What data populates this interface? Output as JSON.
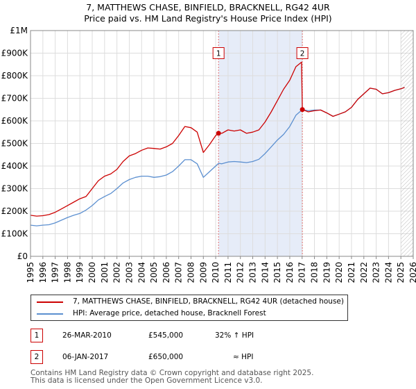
{
  "title": "7, MATTHEWS CHASE, BINFIELD, BRACKNELL, RG42 4UR",
  "subtitle": "Price paid vs. HM Land Registry's House Price Index (HPI)",
  "colors": {
    "property_line": "#cc0000",
    "hpi_line": "#5b8fd0",
    "shade": "#e6ecf8",
    "marker_vline": "#e07070",
    "grid": "#dddddd"
  },
  "chart_data": {
    "type": "line",
    "title": "7, MATTHEWS CHASE, BINFIELD, BRACKNELL, RG42 4UR",
    "subtitle": "Price paid vs. HM Land Registry's House Price Index (HPI)",
    "xlabel": "",
    "ylabel": "",
    "xlim": [
      1995,
      2026
    ],
    "ylim": [
      0,
      1000000
    ],
    "grid": true,
    "y_ticks": [
      {
        "value": 0,
        "label": "£0"
      },
      {
        "value": 100000,
        "label": "£100K"
      },
      {
        "value": 200000,
        "label": "£200K"
      },
      {
        "value": 300000,
        "label": "£300K"
      },
      {
        "value": 400000,
        "label": "£400K"
      },
      {
        "value": 500000,
        "label": "£500K"
      },
      {
        "value": 600000,
        "label": "£600K"
      },
      {
        "value": 700000,
        "label": "£700K"
      },
      {
        "value": 800000,
        "label": "£800K"
      },
      {
        "value": 900000,
        "label": "£900K"
      },
      {
        "value": 1000000,
        "label": "£1M"
      }
    ],
    "x_ticks": [
      "1995",
      "1996",
      "1997",
      "1998",
      "1999",
      "2000",
      "2001",
      "2002",
      "2003",
      "2004",
      "2005",
      "2006",
      "2007",
      "2008",
      "2009",
      "2010",
      "2011",
      "2012",
      "2013",
      "2014",
      "2015",
      "2016",
      "2017",
      "2018",
      "2019",
      "2020",
      "2021",
      "2022",
      "2023",
      "2024",
      "2025",
      "2026"
    ],
    "shaded_ranges": [
      [
        2010.23,
        2017.02
      ]
    ],
    "forecast_start": 2025.0,
    "series": [
      {
        "name": "7, MATTHEWS CHASE, BINFIELD, BRACKNELL, RG42 4UR (detached house)",
        "color": "#cc0000",
        "points": [
          [
            1995.0,
            182000
          ],
          [
            1995.5,
            178000
          ],
          [
            1996.0,
            180000
          ],
          [
            1996.5,
            185000
          ],
          [
            1997.0,
            195000
          ],
          [
            1997.5,
            210000
          ],
          [
            1998.0,
            225000
          ],
          [
            1998.5,
            240000
          ],
          [
            1999.0,
            255000
          ],
          [
            1999.5,
            265000
          ],
          [
            2000.0,
            300000
          ],
          [
            2000.5,
            335000
          ],
          [
            2001.0,
            355000
          ],
          [
            2001.5,
            365000
          ],
          [
            2002.0,
            385000
          ],
          [
            2002.5,
            420000
          ],
          [
            2003.0,
            445000
          ],
          [
            2003.5,
            455000
          ],
          [
            2004.0,
            470000
          ],
          [
            2004.5,
            480000
          ],
          [
            2005.0,
            478000
          ],
          [
            2005.5,
            475000
          ],
          [
            2006.0,
            485000
          ],
          [
            2006.5,
            500000
          ],
          [
            2007.0,
            535000
          ],
          [
            2007.5,
            575000
          ],
          [
            2008.0,
            570000
          ],
          [
            2008.5,
            550000
          ],
          [
            2009.0,
            460000
          ],
          [
            2009.5,
            495000
          ],
          [
            2010.0,
            535000
          ],
          [
            2010.23,
            545000
          ],
          [
            2010.5,
            545000
          ],
          [
            2011.0,
            560000
          ],
          [
            2011.5,
            555000
          ],
          [
            2012.0,
            560000
          ],
          [
            2012.5,
            545000
          ],
          [
            2013.0,
            550000
          ],
          [
            2013.5,
            560000
          ],
          [
            2014.0,
            595000
          ],
          [
            2014.5,
            640000
          ],
          [
            2015.0,
            690000
          ],
          [
            2015.5,
            740000
          ],
          [
            2016.0,
            780000
          ],
          [
            2016.5,
            840000
          ],
          [
            2016.95,
            860000
          ],
          [
            2017.02,
            650000
          ],
          [
            2017.5,
            640000
          ],
          [
            2018.0,
            645000
          ],
          [
            2018.5,
            648000
          ],
          [
            2019.0,
            635000
          ],
          [
            2019.5,
            620000
          ],
          [
            2020.0,
            630000
          ],
          [
            2020.5,
            640000
          ],
          [
            2021.0,
            660000
          ],
          [
            2021.5,
            695000
          ],
          [
            2022.0,
            720000
          ],
          [
            2022.5,
            745000
          ],
          [
            2023.0,
            740000
          ],
          [
            2023.5,
            720000
          ],
          [
            2024.0,
            725000
          ],
          [
            2024.5,
            735000
          ],
          [
            2025.0,
            742000
          ],
          [
            2025.3,
            748000
          ]
        ]
      },
      {
        "name": "HPI: Average price, detached house, Bracknell Forest",
        "color": "#5b8fd0",
        "points": [
          [
            1995.0,
            138000
          ],
          [
            1995.5,
            135000
          ],
          [
            1996.0,
            138000
          ],
          [
            1996.5,
            140000
          ],
          [
            1997.0,
            148000
          ],
          [
            1997.5,
            160000
          ],
          [
            1998.0,
            172000
          ],
          [
            1998.5,
            182000
          ],
          [
            1999.0,
            190000
          ],
          [
            1999.5,
            205000
          ],
          [
            2000.0,
            225000
          ],
          [
            2000.5,
            250000
          ],
          [
            2001.0,
            265000
          ],
          [
            2001.5,
            278000
          ],
          [
            2002.0,
            300000
          ],
          [
            2002.5,
            325000
          ],
          [
            2003.0,
            340000
          ],
          [
            2003.5,
            350000
          ],
          [
            2004.0,
            355000
          ],
          [
            2004.5,
            355000
          ],
          [
            2005.0,
            350000
          ],
          [
            2005.5,
            353000
          ],
          [
            2006.0,
            360000
          ],
          [
            2006.5,
            375000
          ],
          [
            2007.0,
            400000
          ],
          [
            2007.5,
            428000
          ],
          [
            2008.0,
            428000
          ],
          [
            2008.5,
            410000
          ],
          [
            2009.0,
            350000
          ],
          [
            2009.5,
            375000
          ],
          [
            2010.0,
            400000
          ],
          [
            2010.23,
            412000
          ],
          [
            2010.5,
            410000
          ],
          [
            2011.0,
            418000
          ],
          [
            2011.5,
            420000
          ],
          [
            2012.0,
            418000
          ],
          [
            2012.5,
            415000
          ],
          [
            2013.0,
            420000
          ],
          [
            2013.5,
            430000
          ],
          [
            2014.0,
            455000
          ],
          [
            2014.5,
            485000
          ],
          [
            2015.0,
            515000
          ],
          [
            2015.5,
            540000
          ],
          [
            2016.0,
            575000
          ],
          [
            2016.5,
            625000
          ],
          [
            2017.02,
            650000
          ],
          [
            2017.5,
            645000
          ],
          [
            2018.0,
            648000
          ],
          [
            2018.5,
            648000
          ],
          [
            2019.0,
            635000
          ],
          [
            2019.5,
            620000
          ],
          [
            2020.0,
            630000
          ],
          [
            2020.5,
            640000
          ],
          [
            2021.0,
            660000
          ],
          [
            2021.5,
            695000
          ],
          [
            2022.0,
            720000
          ],
          [
            2022.5,
            745000
          ],
          [
            2023.0,
            740000
          ],
          [
            2023.5,
            720000
          ],
          [
            2024.0,
            725000
          ],
          [
            2024.5,
            735000
          ],
          [
            2025.0,
            742000
          ],
          [
            2025.3,
            748000
          ]
        ]
      }
    ],
    "markers": [
      {
        "id": "1",
        "x": 2010.23,
        "y": 545000,
        "label_y": 900000
      },
      {
        "id": "2",
        "x": 2017.02,
        "y": 650000,
        "label_y": 900000
      }
    ]
  },
  "legend": {
    "items": [
      {
        "label": "7, MATTHEWS CHASE, BINFIELD, BRACKNELL, RG42 4UR (detached house)",
        "color": "#cc0000"
      },
      {
        "label": "HPI: Average price, detached house, Bracknell Forest",
        "color": "#5b8fd0"
      }
    ]
  },
  "sales": [
    {
      "id": "1",
      "date": "26-MAR-2010",
      "price": "£545,000",
      "hpi": "32% ↑ HPI"
    },
    {
      "id": "2",
      "date": "06-JAN-2017",
      "price": "£650,000",
      "hpi": "≈ HPI"
    }
  ],
  "footer": {
    "line1": "Contains HM Land Registry data © Crown copyright and database right 2025.",
    "line2": "This data is licensed under the Open Government Licence v3.0."
  }
}
